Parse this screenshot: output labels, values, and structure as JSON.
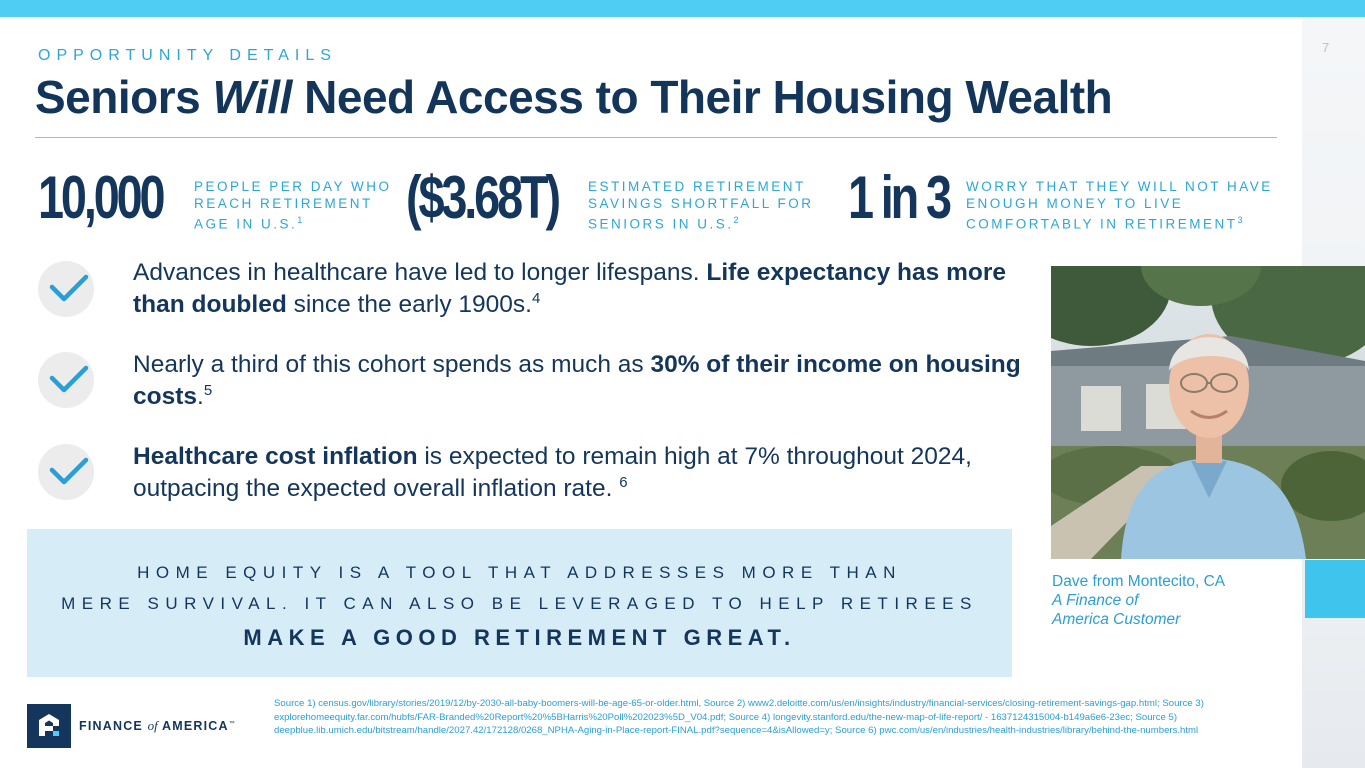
{
  "page_number": "7",
  "eyebrow": "OPPORTUNITY DETAILS",
  "title": {
    "part1": "Seniors ",
    "emphasis": "Will",
    "part2": " Need Access to Their Housing Wealth"
  },
  "stats": [
    {
      "value": "10,000",
      "label_line1": "People per day who",
      "label_line2": "reach retirement",
      "label_line3": "age in U.S.",
      "footnote": "1"
    },
    {
      "value": "($3.68T)",
      "label_line1": "Estimated retirement",
      "label_line2": "savings shortfall for",
      "label_line3": "seniors in U.S.",
      "footnote": "2"
    },
    {
      "value": "1 in 3",
      "label_line1": "Worry that they will not have",
      "label_line2": "enough money to live",
      "label_line3": "comfortably in retirement",
      "footnote": "3"
    }
  ],
  "bullets": [
    {
      "text1": "Advances in healthcare have led to longer lifespans. ",
      "bold1": "Life expectancy has more than doubled",
      "text2": " since the early 1900s.",
      "footnote": "4"
    },
    {
      "text1": "Nearly a third of this cohort spends as much as ",
      "bold1": "30% of their income on housing costs",
      "text2": ".",
      "footnote": "5"
    },
    {
      "bold1": "Healthcare cost inflation",
      "text1": " is expected to remain high at 7% throughout 2024, outpacing the expected overall inflation rate. ",
      "footnote": "6"
    }
  ],
  "callout": {
    "line1": "Home equity is a tool that addresses more than",
    "line2": "mere survival. It can also be leveraged to help retirees",
    "line3": "Make a good retirement great."
  },
  "caption": {
    "name": "Dave from Montecito, CA",
    "role_line1": "A Finance of",
    "role_line2": "America Customer"
  },
  "logo": {
    "word1": "FINANCE",
    "word2": "of",
    "word3": "AMERICA",
    "tm": "™"
  },
  "sources": "Source 1) census.gov/library/stories/2019/12/by-2030-all-baby-boomers-will-be-age-65-or-older.html, Source 2) www2.deloitte.com/us/en/insights/industry/financial-services/closing-retirement-savings-gap.html; Source 3) explorehomeequity.far.com/hubfs/FAR-Branded%20Report%20%5BHarris%20Poll%202023%5D_V04.pdf; Source 4) longevity.stanford.edu/the-new-map-of-life-report/ - 1637124315004-b149a6e6-23ec; Source 5) deepblue.lib.umich.edu/bitstream/handle/2027.42/172128/0268_NPHA-Aging-in-Place-report-FINAL.pdf?sequence=4&isAllowed=y; Source 6) pwc.com/us/en/industries/health-industries/library/behind-the-numbers.html",
  "colors": {
    "navy": "#14365c",
    "accent_blue": "#2aa7d8",
    "top_bar": "#4fcdf3",
    "callout_bg": "#d6ecf7"
  },
  "icons": [
    "check-icon",
    "finance-of-america-logo"
  ]
}
